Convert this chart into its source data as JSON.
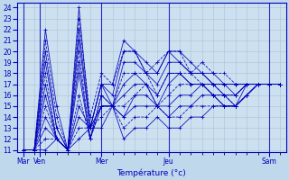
{
  "xlabel": "Température (°c)",
  "bg_color": "#c0d8ec",
  "plot_bg_color": "#cce0f0",
  "line_color": "#0000bb",
  "grid_color": "#aac0d8",
  "yticks": [
    11,
    12,
    13,
    14,
    15,
    16,
    17,
    18,
    19,
    20,
    21,
    22,
    23,
    24
  ],
  "ylim": [
    10.8,
    24.4
  ],
  "xlim": [
    -0.5,
    23.5
  ],
  "day_labels": [
    "Mar",
    "Ven",
    "Mer",
    "Jeu",
    "Sam"
  ],
  "day_positions": [
    0,
    1.5,
    7,
    13,
    22
  ],
  "series": [
    [
      11,
      11,
      22,
      15,
      11,
      24,
      13,
      17,
      17,
      21,
      20,
      19,
      18,
      20,
      20,
      19,
      18,
      18,
      17,
      17,
      17,
      17,
      17,
      17
    ],
    [
      11,
      11,
      21,
      14,
      11,
      23,
      14,
      18,
      17,
      20,
      20,
      18,
      19,
      20,
      20,
      18,
      19,
      18,
      18,
      17,
      17,
      17,
      17,
      17
    ],
    [
      11,
      11,
      20,
      13,
      11,
      22,
      13,
      17,
      16,
      20,
      20,
      18,
      18,
      20,
      19,
      18,
      18,
      17,
      17,
      17,
      17,
      17,
      17,
      17
    ],
    [
      11,
      11,
      19,
      13,
      11,
      21,
      13,
      17,
      15,
      19,
      19,
      18,
      17,
      19,
      19,
      18,
      18,
      17,
      17,
      16,
      17,
      17,
      17,
      17
    ],
    [
      11,
      11,
      18,
      12,
      11,
      20,
      12,
      16,
      15,
      18,
      18,
      18,
      16,
      18,
      18,
      18,
      17,
      17,
      16,
      16,
      17,
      17,
      17,
      17
    ],
    [
      11,
      11,
      17,
      12,
      11,
      19,
      12,
      16,
      15,
      17,
      18,
      17,
      16,
      18,
      18,
      17,
      17,
      17,
      16,
      16,
      17,
      17,
      17,
      17
    ],
    [
      11,
      11,
      16,
      12,
      11,
      18,
      12,
      15,
      15,
      16,
      17,
      17,
      15,
      17,
      18,
      17,
      17,
      16,
      16,
      15,
      17,
      17,
      17,
      17
    ],
    [
      11,
      11,
      15,
      12,
      11,
      16,
      12,
      15,
      15,
      15,
      16,
      17,
      15,
      16,
      17,
      17,
      17,
      16,
      16,
      15,
      16,
      17,
      17,
      17
    ],
    [
      11,
      11,
      14,
      12,
      11,
      15,
      13,
      15,
      15,
      14,
      16,
      16,
      15,
      15,
      16,
      16,
      17,
      16,
      15,
      15,
      16,
      17,
      17,
      17
    ],
    [
      11,
      11,
      13,
      12,
      11,
      14,
      13,
      15,
      15,
      14,
      15,
      15,
      15,
      14,
      15,
      15,
      16,
      16,
      15,
      15,
      16,
      17,
      17,
      17
    ],
    [
      11,
      11,
      12,
      12,
      11,
      13,
      13,
      14,
      15,
      13,
      14,
      14,
      15,
      14,
      14,
      15,
      15,
      15,
      15,
      15,
      16,
      17,
      17,
      17
    ],
    [
      11,
      11,
      11,
      12,
      11,
      12,
      13,
      13,
      15,
      12,
      13,
      13,
      14,
      13,
      13,
      14,
      14,
      15,
      15,
      15,
      16,
      17,
      17,
      17
    ]
  ]
}
